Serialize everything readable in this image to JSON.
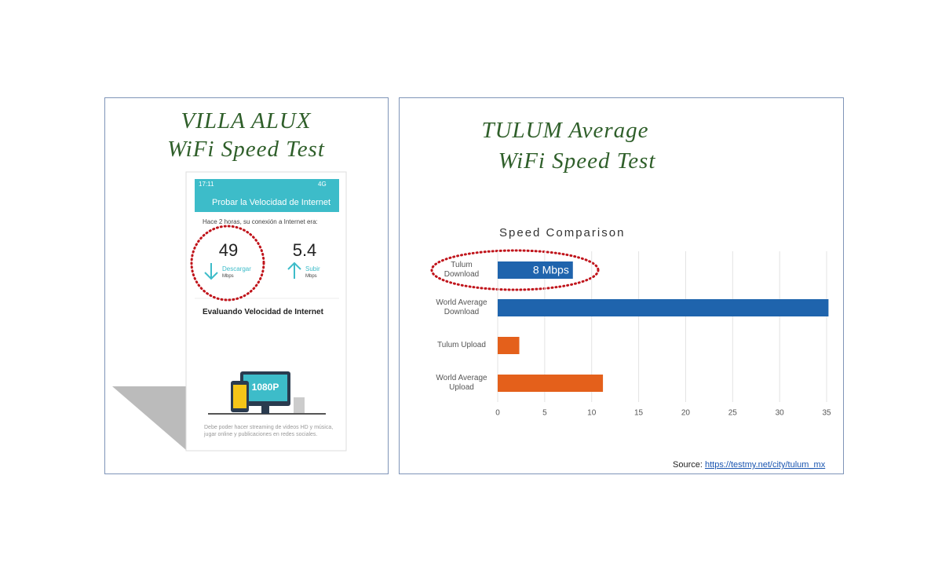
{
  "left_panel": {
    "title_line1": "VILLA ALUX",
    "title_line2": "WiFi Speed Test",
    "phone": {
      "time": "17:11",
      "network": "4G",
      "header": "Probar la Velocidad de Internet",
      "intro": "Hace 2 horas, su conexión a Internet era:",
      "download": {
        "value": "49",
        "label": "Descargar",
        "unit": "Mbps"
      },
      "upload": {
        "value": "5.4",
        "label": "Subir",
        "unit": "Mbps"
      },
      "section": "Evaluando Velocidad de Internet",
      "badge": "1080P",
      "footer": "Debe poder hacer streaming de videos HD y música, jugar online y publicaciones en redes sociales."
    }
  },
  "right_panel": {
    "title_line1": "TULUM Average",
    "title_line2": "WiFi Speed Test",
    "source_label": "Source:",
    "source_link": "https://testmy.net/city/tulum_mx"
  },
  "chart_data": {
    "type": "hbar",
    "title": "Speed Comparison",
    "categories": [
      "Tulum\nDownload",
      "World Average\nDownload",
      "Tulum Upload",
      "World Average\nUpload"
    ],
    "values": [
      8,
      35.2,
      2.3,
      11.2
    ],
    "value_labels": [
      "8 Mbps",
      null,
      null,
      null
    ],
    "colors": [
      "#1f64ad",
      "#1f64ad",
      "#e4601b",
      "#e4601b"
    ],
    "xlim": [
      0,
      35.5
    ],
    "xticks": [
      0,
      5,
      10,
      15,
      20,
      25,
      30,
      35
    ],
    "grid": true
  }
}
